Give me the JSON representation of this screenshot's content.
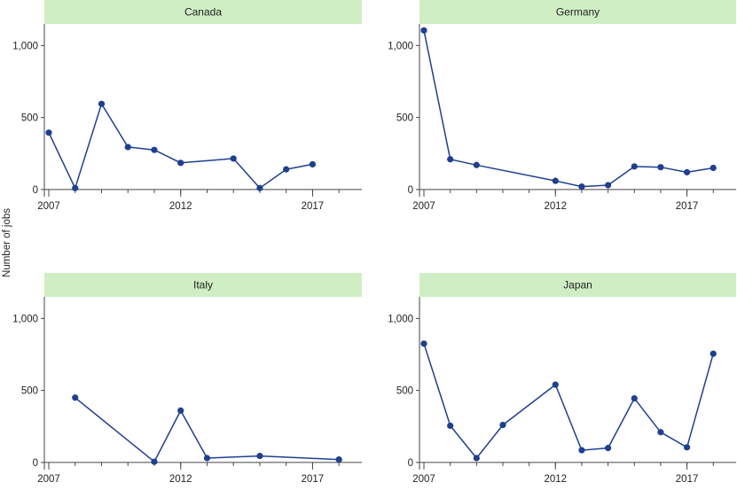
{
  "chart_data": {
    "type": "line",
    "ylabel": "Number of jobs",
    "xlabel": "",
    "xlim": [
      2007,
      2018.7
    ],
    "ylim": [
      -50,
      1150
    ],
    "x_ticks": [
      2007,
      2012,
      2017
    ],
    "x_minor_ticks": [
      2007,
      2008,
      2009,
      2010,
      2011,
      2012,
      2013,
      2014,
      2015,
      2016,
      2017,
      2018
    ],
    "y_ticks": [
      0,
      500,
      1000
    ],
    "y_tick_labels": [
      "0",
      "500",
      "1,000"
    ],
    "line_color": "#1f3f8f",
    "point_color": "#1f3f8f",
    "strip_color": "#cfeec4",
    "panels": [
      {
        "title": "Canada",
        "x": [
          2007,
          2008,
          2009,
          2010,
          2011,
          2012,
          2014,
          2015,
          2016,
          2017
        ],
        "values": [
          395,
          10,
          595,
          295,
          275,
          185,
          215,
          10,
          140,
          175
        ]
      },
      {
        "title": "Germany",
        "x": [
          2007,
          2008,
          2009,
          2012,
          2013,
          2014,
          2015,
          2016,
          2017,
          2018
        ],
        "values": [
          1105,
          210,
          170,
          60,
          20,
          30,
          160,
          155,
          120,
          150
        ]
      },
      {
        "title": "Italy",
        "x": [
          2008,
          2011,
          2012,
          2013,
          2015,
          2018
        ],
        "values": [
          450,
          5,
          360,
          30,
          45,
          20
        ]
      },
      {
        "title": "Japan",
        "x": [
          2007,
          2008,
          2009,
          2010,
          2012,
          2013,
          2014,
          2015,
          2016,
          2017,
          2018
        ],
        "values": [
          825,
          255,
          30,
          260,
          540,
          85,
          100,
          445,
          210,
          105,
          755
        ]
      }
    ]
  }
}
